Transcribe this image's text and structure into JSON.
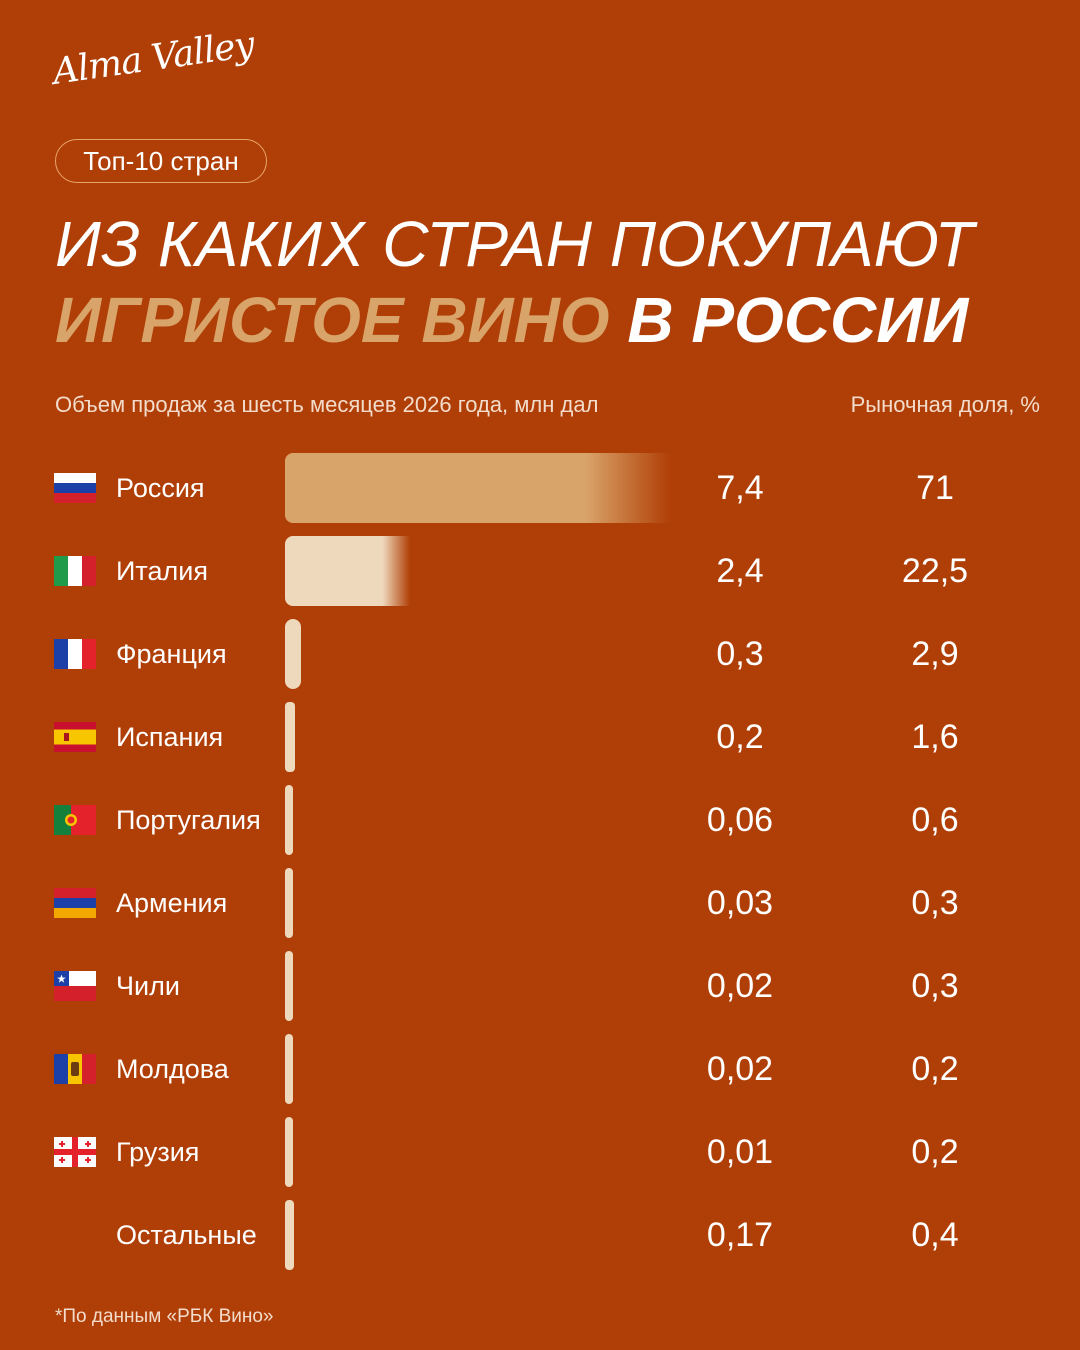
{
  "brand": {
    "logo_text": "Alma Valley"
  },
  "badge": {
    "label": "Топ-10 стран"
  },
  "title": {
    "line1": "ИЗ КАКИХ СТРАН ПОКУПАЮТ",
    "line2_accent": "ИГРИСТОЕ ВИНО",
    "line2_rest": "В РОССИИ"
  },
  "headers": {
    "volume": "Объем продаж за шесть месяцев 2026 года, млн дал",
    "share": "Рыночная доля, %"
  },
  "colors": {
    "background": "#b03f07",
    "accent": "#d9a469",
    "bar_light": "#efd9bc",
    "bar_top": "#d9a469"
  },
  "chart_data": {
    "type": "bar",
    "orientation": "horizontal",
    "categories": [
      "Россия",
      "Италия",
      "Франция",
      "Испания",
      "Португалия",
      "Армения",
      "Чили",
      "Молдова",
      "Грузия",
      "Остальные"
    ],
    "series": [
      {
        "values": [
          7.4,
          2.4,
          0.3,
          0.2,
          0.06,
          0.03,
          0.02,
          0.02,
          0.01,
          0.17
        ]
      },
      {
        "values": [
          71,
          22.5,
          2.9,
          1.6,
          0.6,
          0.3,
          0.3,
          0.2,
          0.2,
          0.4
        ]
      }
    ],
    "value_labels": [
      "7,4",
      "2,4",
      "0,3",
      "0,2",
      "0,06",
      "0,03",
      "0,02",
      "0,02",
      "0,01",
      "0,17"
    ],
    "share_labels": [
      "71",
      "22,5",
      "2,9",
      "1,6",
      "0,6",
      "0,3",
      "0,3",
      "0,2",
      "0,2",
      "0,4"
    ],
    "flags": [
      "russia-flag-icon",
      "italy-flag-icon",
      "france-flag-icon",
      "spain-flag-icon",
      "portugal-flag-icon",
      "armenia-flag-icon",
      "chile-flag-icon",
      "moldova-flag-icon",
      "georgia-flag-icon",
      ""
    ],
    "legend": "none",
    "grid": false
  },
  "footnote": "*По данным «РБК Вино»"
}
